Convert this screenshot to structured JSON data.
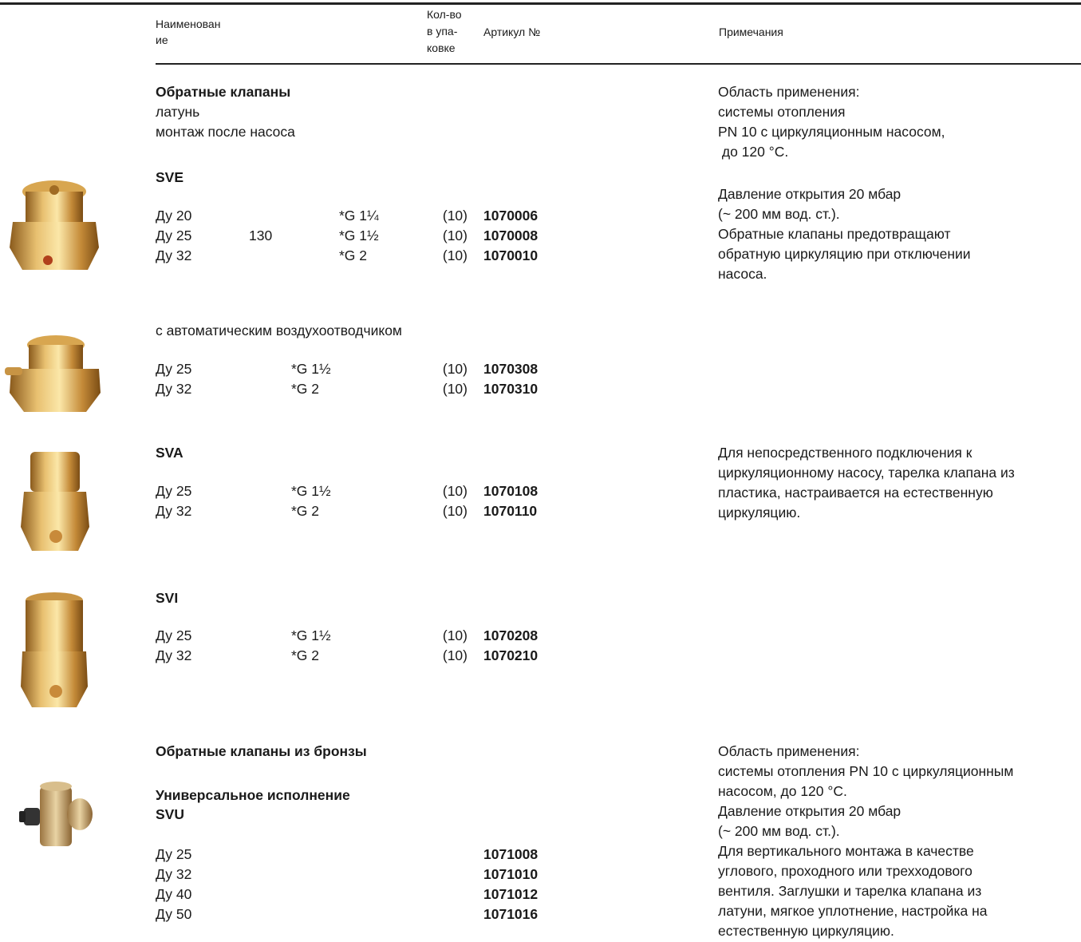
{
  "header": {
    "name": [
      "Наименован",
      "ие"
    ],
    "pack": [
      "Кол-во",
      "в упа-",
      "ковке"
    ],
    "article": "Артикул №",
    "notes": "Примечания"
  },
  "brass": {
    "title": "Обратные клапаны",
    "lines": [
      "латунь",
      "монтаж после насоса"
    ],
    "notes": [
      "Область применения:",
      "системы отопления",
      "PN 10 с циркуляционным насосом,",
      " до 120 °C."
    ]
  },
  "groups": [
    {
      "model": "SVE",
      "rows": [
        {
          "dn": "Ду 20",
          "thread": "*G 1¼",
          "pack": "(10)",
          "article": "1070006"
        },
        {
          "dn": "Ду 25",
          "length": "130",
          "thread": "*G 1½",
          "pack": "(10)",
          "article": "1070008"
        },
        {
          "dn": "Ду 32",
          "thread": "*G 2",
          "pack": "(10)",
          "article": "1070010"
        }
      ],
      "notes": [
        "Давление открытия 20 мбар",
        "(~ 200 мм вод. ст.).",
        "Обратные клапаны предотвращают",
        "обратную циркуляцию при отключении",
        "насоса."
      ]
    },
    {
      "label": "с автоматическим воздухоотводчиком",
      "rows": [
        {
          "dn": "Ду 25",
          "thread": "*G 1½",
          "pack": "(10)",
          "article": "1070308"
        },
        {
          "dn": "Ду 32",
          "thread": "*G 2",
          "pack": "(10)",
          "article": "1070310"
        }
      ]
    },
    {
      "model": "SVA",
      "rows": [
        {
          "dn": "Ду 25",
          "thread": "*G 1½",
          "pack": "(10)",
          "article": "1070108"
        },
        {
          "dn": "Ду 32",
          "thread": "*G 2",
          "pack": "(10)",
          "article": "1070110"
        }
      ],
      "notes": [
        "Для непосредственного подключения к",
        "циркуляционному насосу, тарелка клапана из",
        "пластика, настраивается на естественную",
        "циркуляцию."
      ]
    },
    {
      "model": "SVI",
      "rows": [
        {
          "dn": "Ду 25",
          "thread": "*G 1½",
          "pack": "(10)",
          "article": "1070208"
        },
        {
          "dn": "Ду 32",
          "thread": "*G 2",
          "pack": "(10)",
          "article": "1070210"
        }
      ]
    }
  ],
  "bronze": {
    "title": "Обратные клапаны из бронзы",
    "subtitle": "Универсальное исполнение",
    "model": "SVU",
    "rows": [
      {
        "dn": "Ду 25",
        "article": "1071008"
      },
      {
        "dn": "Ду 32",
        "article": "1071010"
      },
      {
        "dn": "Ду 40",
        "article": "1071012"
      },
      {
        "dn": "Ду 50",
        "article": "1071016"
      }
    ],
    "notes": [
      "Область применения:",
      "системы отопления PN 10 с циркуляционным",
      "насосом, до 120 °C.",
      "Давление открытия 20 мбар",
      "(~ 200 мм вод. ст.).",
      "Для вертикального монтажа в качестве",
      "углового, проходного или трехходового",
      "вентиля. Заглушки и тарелка клапана из",
      "латуни, мягкое уплотнение, настройка на",
      "естественную циркуляцию."
    ]
  }
}
